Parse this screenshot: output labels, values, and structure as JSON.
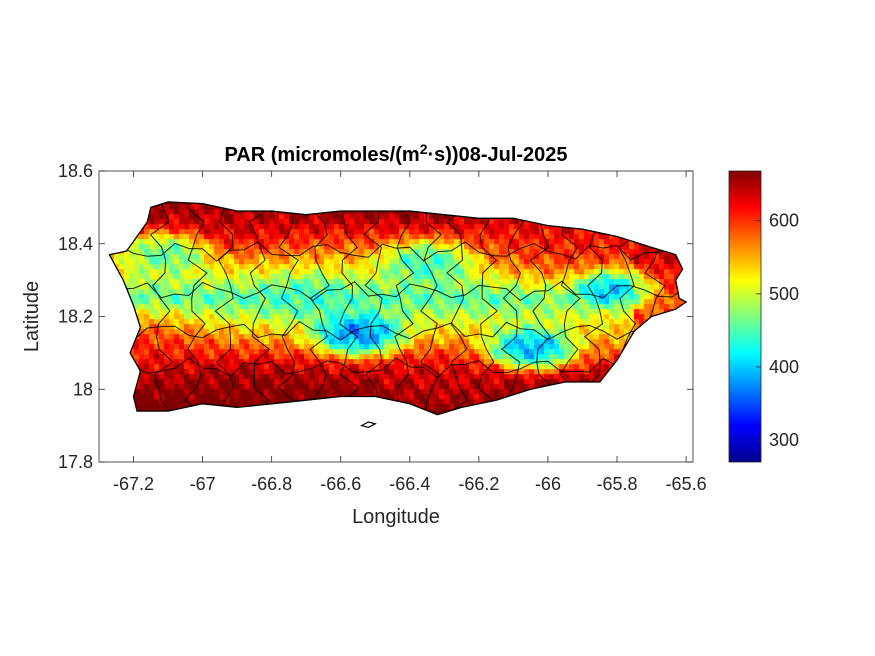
{
  "chart_data": {
    "type": "heatmap",
    "title_main": "PAR (micromoles/(m",
    "title_sup": "2",
    "title_tail": "·s))08-Jul-2025",
    "xlabel": "Longitude",
    "ylabel": "Latitude",
    "xlim": [
      -67.3,
      -65.58
    ],
    "ylim": [
      17.8,
      18.6
    ],
    "xticks": [
      -67.2,
      -67,
      -66.8,
      -66.6,
      -66.4,
      -66.2,
      -66,
      -65.8,
      -65.6
    ],
    "xtick_labels": [
      "-67.2",
      "-67",
      "-66.8",
      "-66.6",
      "-66.4",
      "-66.2",
      "-66",
      "-65.8",
      "-65.6"
    ],
    "yticks": [
      17.8,
      18,
      18.2,
      18.4,
      18.6
    ],
    "ytick_labels": [
      "17.8",
      "18",
      "18.2",
      "18.4",
      "18.6"
    ],
    "colorbar": {
      "colormap": "jet",
      "range": [
        270,
        668
      ],
      "ticks": [
        300,
        400,
        500,
        600
      ],
      "tick_labels": [
        "300",
        "400",
        "500",
        "600"
      ]
    },
    "field": {
      "description_of_values": "PAR estimated: high (600-660) along south coast and northwest/east coasts, low (370-450) interior band, minima near -65.8,18.28 and -66.55,18.15",
      "hotspots": [
        {
          "lon": -67.1,
          "lat": 17.97,
          "value": 665
        },
        {
          "lon": -66.85,
          "lat": 17.98,
          "value": 660
        },
        {
          "lon": -66.95,
          "lat": 18.48,
          "value": 640
        },
        {
          "lon": -65.68,
          "lat": 18.3,
          "value": 640
        },
        {
          "lon": -65.95,
          "lat": 18.4,
          "value": 620
        },
        {
          "lon": -66.3,
          "lat": 17.98,
          "value": 630
        },
        {
          "lon": -67.2,
          "lat": 18.1,
          "value": 620
        }
      ],
      "coldspots": [
        {
          "lon": -65.8,
          "lat": 18.28,
          "value": 290
        },
        {
          "lon": -66.55,
          "lat": 18.15,
          "value": 330
        },
        {
          "lon": -66.05,
          "lat": 18.11,
          "value": 340
        },
        {
          "lon": -67.1,
          "lat": 18.38,
          "value": 420
        },
        {
          "lon": -66.35,
          "lat": 18.35,
          "value": 420
        },
        {
          "lon": -66.7,
          "lat": 18.25,
          "value": 440
        }
      ]
    }
  }
}
